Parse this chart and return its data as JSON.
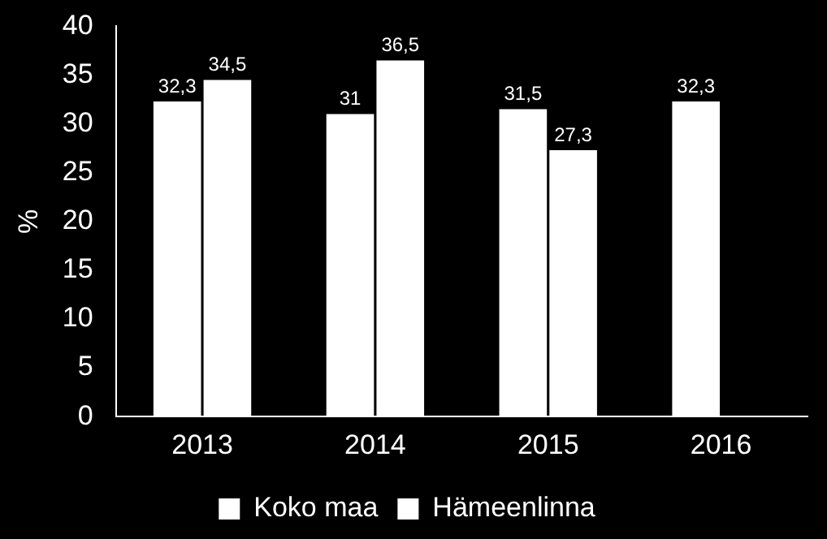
{
  "chart_data": {
    "type": "bar",
    "ylabel": "%",
    "categories": [
      "2013",
      "2014",
      "2015",
      "2016"
    ],
    "series": [
      {
        "name": "Koko maa",
        "color": "#ffffff",
        "values": [
          32.3,
          31,
          31.5,
          32.3
        ],
        "value_labels": [
          "32,3",
          "31",
          "31,5",
          "32,3"
        ]
      },
      {
        "name": "Hämeenlinna",
        "color": "#ffffff",
        "values": [
          34.5,
          36.5,
          27.3,
          null
        ],
        "value_labels": [
          "34,5",
          "36,5",
          "27,3",
          null
        ]
      }
    ],
    "ylim": [
      0,
      40
    ],
    "yticks": [
      0,
      5,
      10,
      15,
      20,
      25,
      30,
      35,
      40
    ],
    "grid": false,
    "legend": "bottom"
  }
}
